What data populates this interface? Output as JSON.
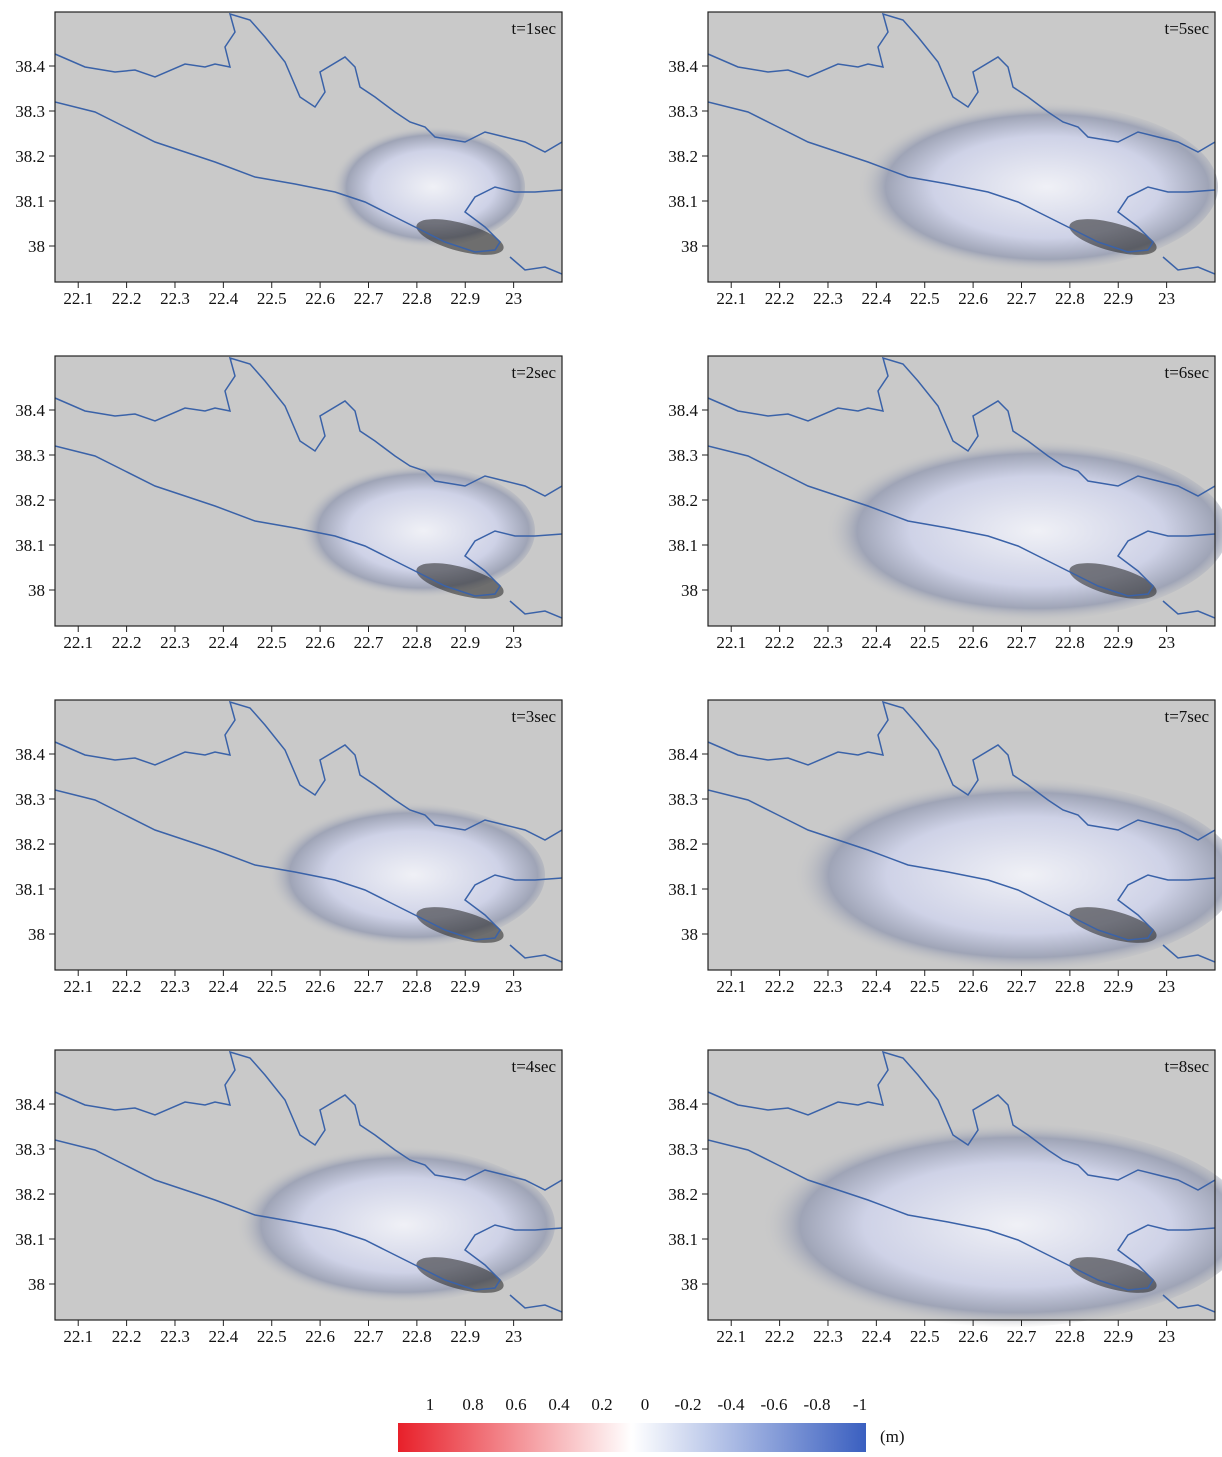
{
  "panels": [
    {
      "label": "t=1sec"
    },
    {
      "label": "t=5sec"
    },
    {
      "label": "t=2sec"
    },
    {
      "label": "t=6sec"
    },
    {
      "label": "t=3sec"
    },
    {
      "label": "t=7sec"
    },
    {
      "label": "t=4sec"
    },
    {
      "label": "t=8sec"
    }
  ],
  "xlim": [
    22.052,
    23.1
  ],
  "ylim": [
    37.92,
    38.52
  ],
  "xticks": [
    22.1,
    22.2,
    22.3,
    22.4,
    22.5,
    22.6,
    22.7,
    22.8,
    22.9,
    23
  ],
  "yticks": [
    38,
    38.1,
    38.2,
    38.3,
    38.4
  ],
  "colorbar": {
    "ticks": [
      1,
      0.8,
      0.6,
      0.4,
      0.2,
      0,
      -0.2,
      -0.4,
      -0.6,
      -0.8,
      -1
    ],
    "unit": "(m)",
    "colors": [
      "#e8202a",
      "#ffffff",
      "#3a5fc0"
    ]
  }
}
